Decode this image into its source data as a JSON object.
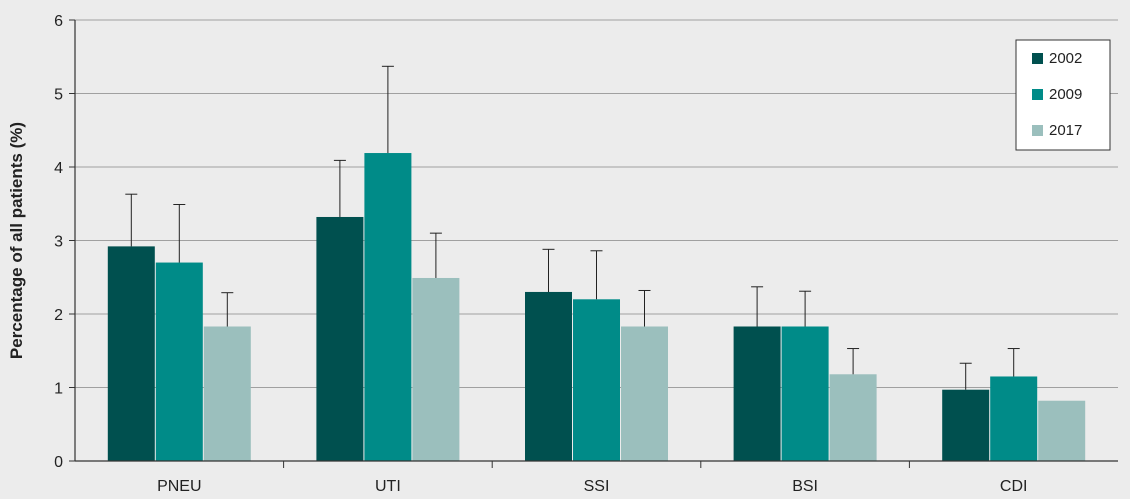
{
  "chart_data": {
    "type": "bar",
    "ylabel": "Percentage of all patients (%)",
    "xlabel": "",
    "ylim": [
      0,
      6
    ],
    "yticks": [
      0,
      1,
      2,
      3,
      4,
      5,
      6
    ],
    "grid": "horizontal",
    "legend_position": "top-right",
    "categories": [
      "PNEU",
      "UTI",
      "SSI",
      "BSI",
      "CDI"
    ],
    "series": [
      {
        "name": "2002",
        "color": "#00504f",
        "values": [
          2.92,
          3.32,
          2.3,
          1.83,
          0.97
        ],
        "error_upper": [
          3.63,
          4.09,
          2.88,
          2.37,
          1.33
        ]
      },
      {
        "name": "2009",
        "color": "#008b88",
        "values": [
          2.7,
          4.19,
          2.2,
          1.83,
          1.15
        ],
        "error_upper": [
          3.49,
          5.37,
          2.86,
          2.31,
          1.53
        ]
      },
      {
        "name": "2017",
        "color": "#9bbfbd",
        "values": [
          1.83,
          2.49,
          1.83,
          1.18,
          0.82
        ],
        "error_upper": [
          2.29,
          3.1,
          2.32,
          1.53,
          null
        ]
      }
    ],
    "axis_color": "#333333",
    "grid_color": "#a0a0a0",
    "background_color": "#ececec"
  }
}
